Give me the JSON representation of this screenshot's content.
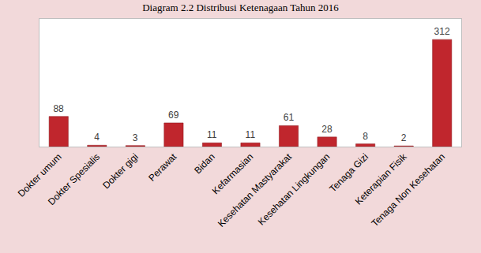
{
  "chart_data": {
    "type": "bar",
    "title": "Diagram 2.2 Distribusi Ketenagaan Tahun 2016",
    "categories": [
      "Dokter umum",
      "Dokter Spesialis",
      "Dokter gigi",
      "Perawat",
      "Bidan",
      "Kefarmasian",
      "Kesehatan Mastyarakat",
      "Kesehatan Lingkungan",
      "Tenaga Gizi",
      "Keterapian Fisik",
      "Tenaga Non Kesehatan"
    ],
    "values": [
      88,
      4,
      3,
      69,
      11,
      11,
      61,
      28,
      8,
      2,
      312
    ],
    "color": "#c0262d",
    "ylim": [
      0,
      372
    ],
    "yticks": [],
    "grid": false,
    "data_labels": true,
    "tick_labels": "x"
  }
}
